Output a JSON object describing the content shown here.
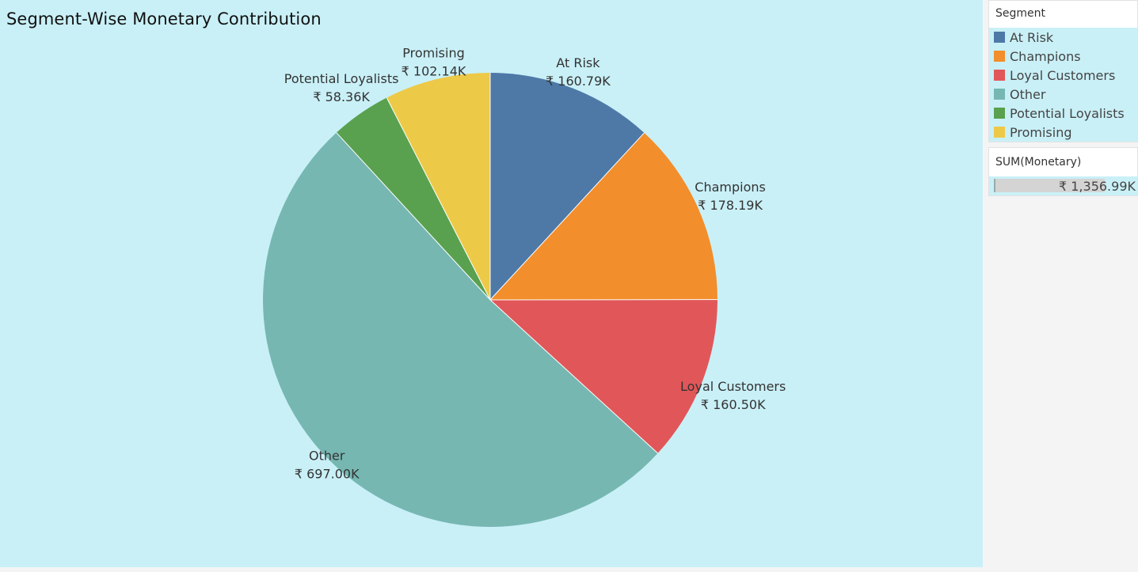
{
  "title": "Segment-Wise Monetary Contribution",
  "legend": {
    "title": "Segment",
    "items": [
      {
        "label": "At Risk",
        "color": "#4e79a7"
      },
      {
        "label": "Champions",
        "color": "#f28e2b"
      },
      {
        "label": "Loyal Customers",
        "color": "#e15759"
      },
      {
        "label": "Other",
        "color": "#76b7b2"
      },
      {
        "label": "Potential Loyalists",
        "color": "#59a14f"
      },
      {
        "label": "Promising",
        "color": "#edc948"
      }
    ]
  },
  "size_legend": {
    "title": "SUM(Monetary)",
    "value_label": "₹ 1,356.99K",
    "fill_fraction": 1.0
  },
  "chart_data": {
    "type": "pie",
    "title": "Segment-Wise Monetary Contribution",
    "categories": [
      "At Risk",
      "Champions",
      "Loyal Customers",
      "Other",
      "Potential Loyalists",
      "Promising"
    ],
    "values": [
      160.79,
      178.19,
      160.5,
      697.0,
      58.36,
      102.14
    ],
    "value_labels": [
      "₹ 160.79K",
      "₹ 178.19K",
      "₹ 160.50K",
      "₹ 697.00K",
      "₹ 58.36K",
      "₹ 102.14K"
    ],
    "colors": [
      "#4e79a7",
      "#f28e2b",
      "#e15759",
      "#76b7b2",
      "#59a14f",
      "#edc948"
    ],
    "start": "12 o'clock",
    "direction": "clockwise",
    "legend_placement": "right"
  }
}
